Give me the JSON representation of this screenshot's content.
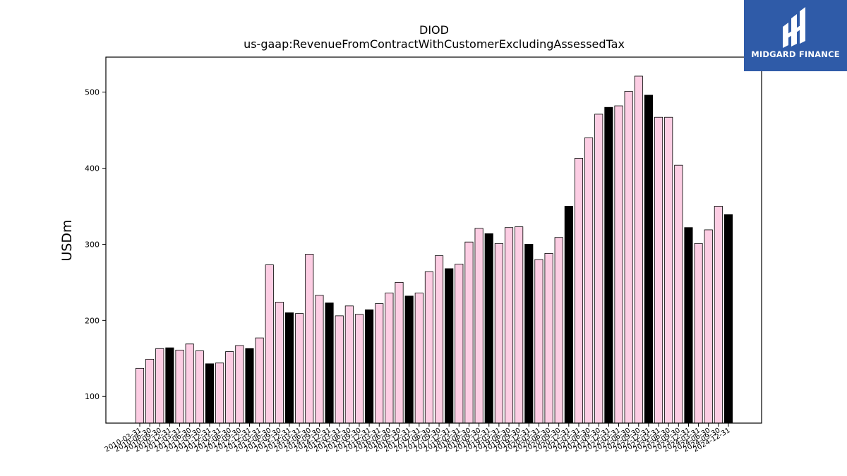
{
  "logo": {
    "text": "MIDGARD FINANCE",
    "background": "#2f5ba8"
  },
  "colors": {
    "bar_fill": "#fccde3",
    "year_end_fill": "#000000",
    "edge": "#000000"
  },
  "chart_data": {
    "type": "bar",
    "title": "DIOD",
    "subtitle": "us-gaap:RevenueFromContractWithCustomerExcludingAssessedTax",
    "xlabel": "",
    "ylabel": "USDm",
    "ylim": [
      65,
      546
    ],
    "yticks": [
      100,
      200,
      300,
      400,
      500
    ],
    "grid": false,
    "categories": [
      "2010-03-31",
      "2010-06-30",
      "2010-09-30",
      "2010-12-31",
      "2011-03-31",
      "2011-06-30",
      "2011-09-30",
      "2011-12-31",
      "2012-03-31",
      "2012-06-30",
      "2012-09-30",
      "2012-12-31",
      "2013-03-31",
      "2013-06-30",
      "2013-09-30",
      "2013-12-31",
      "2014-03-31",
      "2014-06-30",
      "2014-09-30",
      "2014-12-31",
      "2015-03-31",
      "2015-06-30",
      "2015-09-30",
      "2015-12-31",
      "2016-03-31",
      "2016-06-30",
      "2016-09-30",
      "2016-12-31",
      "2017-03-31",
      "2017-06-30",
      "2017-09-30",
      "2017-12-31",
      "2018-03-31",
      "2018-06-30",
      "2018-09-30",
      "2018-12-31",
      "2019-03-31",
      "2019-06-30",
      "2019-09-30",
      "2019-12-31",
      "2020-03-31",
      "2020-06-30",
      "2020-09-30",
      "2020-12-31",
      "2021-03-31",
      "2021-06-30",
      "2021-09-30",
      "2021-12-31",
      "2022-03-31",
      "2022-06-30",
      "2022-09-30",
      "2022-12-31",
      "2023-03-31",
      "2023-06-30",
      "2023-09-30",
      "2023-12-31",
      "2024-03-31",
      "2024-06-30",
      "2024-09-30",
      "2024-12-31"
    ],
    "values": [
      137,
      149,
      163,
      164,
      161,
      169,
      160,
      143,
      144,
      159,
      167,
      163,
      177,
      273,
      224,
      210,
      209,
      287,
      233,
      223,
      206,
      219,
      208,
      214,
      222,
      236,
      250,
      232,
      236,
      264,
      285,
      268,
      274,
      303,
      321,
      314,
      301,
      322,
      323,
      300,
      280,
      288,
      309,
      350,
      413,
      440,
      471,
      480,
      482,
      501,
      521,
      496,
      467,
      467,
      404,
      322,
      301,
      319,
      350,
      339
    ],
    "year_end_highlight": true
  }
}
